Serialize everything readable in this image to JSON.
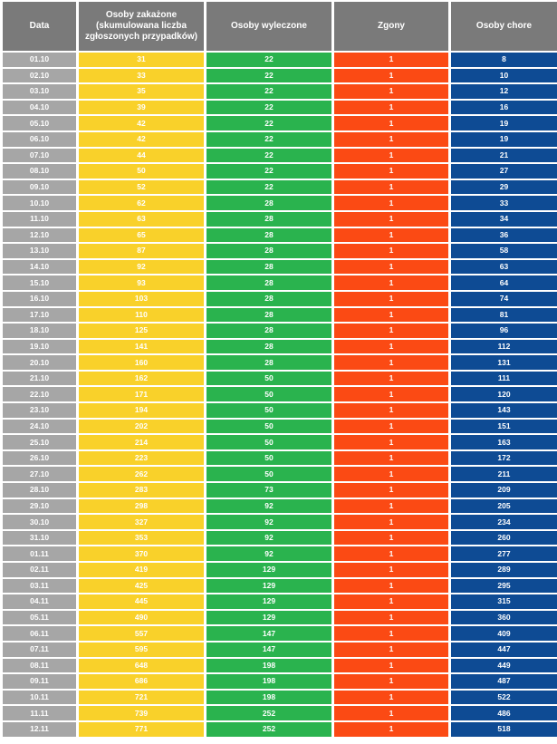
{
  "table": {
    "headers": {
      "date": "Data",
      "infected": "Osoby zakażone (skumulowana liczba zgłoszonych przypadków)",
      "recovered": "Osoby wyleczone",
      "deaths": "Zgony",
      "sick": "Osoby chore"
    },
    "colors": {
      "header": "#7a7a7a",
      "date": "#a6a6a6",
      "infected": "#f9d12a",
      "recovered": "#2ab34e",
      "deaths": "#fb4a14",
      "sick": "#0e4b94"
    },
    "rows": [
      [
        "01.10",
        "31",
        "22",
        "1",
        "8"
      ],
      [
        "02.10",
        "33",
        "22",
        "1",
        "10"
      ],
      [
        "03.10",
        "35",
        "22",
        "1",
        "12"
      ],
      [
        "04.10",
        "39",
        "22",
        "1",
        "16"
      ],
      [
        "05.10",
        "42",
        "22",
        "1",
        "19"
      ],
      [
        "06.10",
        "42",
        "22",
        "1",
        "19"
      ],
      [
        "07.10",
        "44",
        "22",
        "1",
        "21"
      ],
      [
        "08.10",
        "50",
        "22",
        "1",
        "27"
      ],
      [
        "09.10",
        "52",
        "22",
        "1",
        "29"
      ],
      [
        "10.10",
        "62",
        "28",
        "1",
        "33"
      ],
      [
        "11.10",
        "63",
        "28",
        "1",
        "34"
      ],
      [
        "12.10",
        "65",
        "28",
        "1",
        "36"
      ],
      [
        "13.10",
        "87",
        "28",
        "1",
        "58"
      ],
      [
        "14.10",
        "92",
        "28",
        "1",
        "63"
      ],
      [
        "15.10",
        "93",
        "28",
        "1",
        "64"
      ],
      [
        "16.10",
        "103",
        "28",
        "1",
        "74"
      ],
      [
        "17.10",
        "110",
        "28",
        "1",
        "81"
      ],
      [
        "18.10",
        "125",
        "28",
        "1",
        "96"
      ],
      [
        "19.10",
        "141",
        "28",
        "1",
        "112"
      ],
      [
        "20.10",
        "160",
        "28",
        "1",
        "131"
      ],
      [
        "21.10",
        "162",
        "50",
        "1",
        "111"
      ],
      [
        "22.10",
        "171",
        "50",
        "1",
        "120"
      ],
      [
        "23.10",
        "194",
        "50",
        "1",
        "143"
      ],
      [
        "24.10",
        "202",
        "50",
        "1",
        "151"
      ],
      [
        "25.10",
        "214",
        "50",
        "1",
        "163"
      ],
      [
        "26.10",
        "223",
        "50",
        "1",
        "172"
      ],
      [
        "27.10",
        "262",
        "50",
        "1",
        "211"
      ],
      [
        "28.10",
        "283",
        "73",
        "1",
        "209"
      ],
      [
        "29.10",
        "298",
        "92",
        "1",
        "205"
      ],
      [
        "30.10",
        "327",
        "92",
        "1",
        "234"
      ],
      [
        "31.10",
        "353",
        "92",
        "1",
        "260"
      ],
      [
        "01.11",
        "370",
        "92",
        "1",
        "277"
      ],
      [
        "02.11",
        "419",
        "129",
        "1",
        "289"
      ],
      [
        "03.11",
        "425",
        "129",
        "1",
        "295"
      ],
      [
        "04.11",
        "445",
        "129",
        "1",
        "315"
      ],
      [
        "05.11",
        "490",
        "129",
        "1",
        "360"
      ],
      [
        "06.11",
        "557",
        "147",
        "1",
        "409"
      ],
      [
        "07.11",
        "595",
        "147",
        "1",
        "447"
      ],
      [
        "08.11",
        "648",
        "198",
        "1",
        "449"
      ],
      [
        "09.11",
        "686",
        "198",
        "1",
        "487"
      ],
      [
        "10.11",
        "721",
        "198",
        "1",
        "522"
      ],
      [
        "11.11",
        "739",
        "252",
        "1",
        "486"
      ],
      [
        "12.11",
        "771",
        "252",
        "1",
        "518"
      ]
    ]
  }
}
